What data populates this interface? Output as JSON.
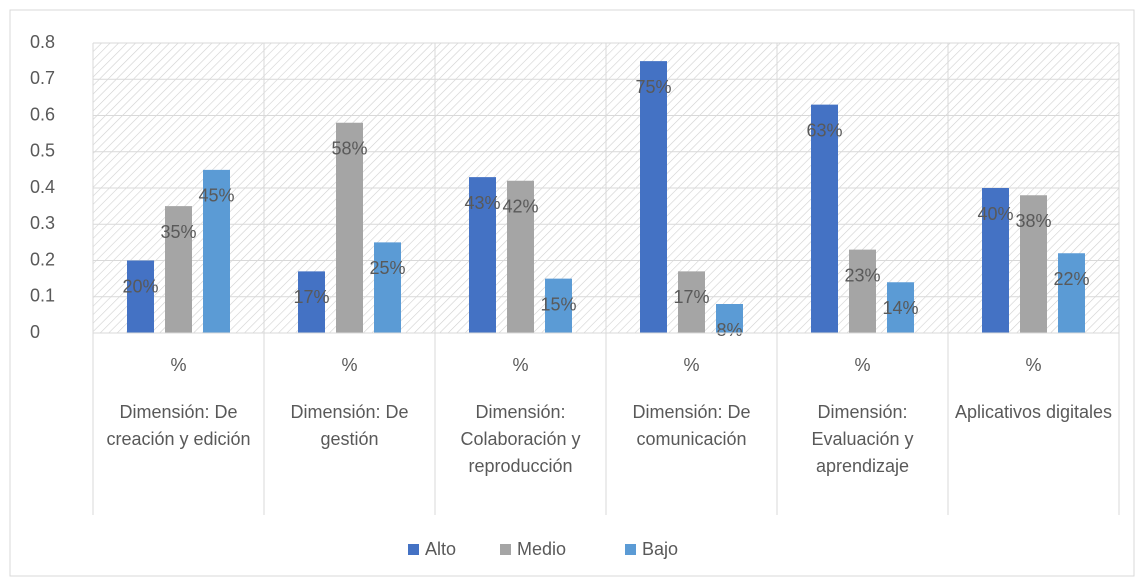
{
  "chart_data": {
    "type": "bar",
    "categories": [
      "Dimensión: De creación y edición",
      "Dimensión: De gestión",
      "Dimensión: Colaboración y reproducción",
      "Dimensión: De comunicación",
      "Dimensión: Evaluación y aprendizaje",
      "Aplicativos digitales"
    ],
    "category_sublabels": [
      "%",
      "%",
      "%",
      "%",
      "%",
      "%"
    ],
    "series": [
      {
        "name": "Alto",
        "color": "#4472c4",
        "values": [
          0.2,
          0.17,
          0.43,
          0.75,
          0.63,
          0.4
        ],
        "value_labels": [
          "20%",
          "17%",
          "43%",
          "75%",
          "63%",
          "40%"
        ]
      },
      {
        "name": "Medio",
        "color": "#a5a5a5",
        "values": [
          0.35,
          0.58,
          0.42,
          0.17,
          0.23,
          0.38
        ],
        "value_labels": [
          "35%",
          "58%",
          "42%",
          "17%",
          "23%",
          "38%"
        ]
      },
      {
        "name": "Bajo",
        "color": "#5b9bd5",
        "values": [
          0.45,
          0.25,
          0.15,
          0.08,
          0.14,
          0.22
        ],
        "value_labels": [
          "45%",
          "25%",
          "15%",
          "8%",
          "14%",
          "22%"
        ]
      }
    ],
    "ylim": [
      0,
      0.8
    ],
    "yticks": [
      0,
      0.1,
      0.2,
      0.3,
      0.4,
      0.5,
      0.6,
      0.7,
      0.8
    ],
    "grid": true,
    "legend": "bottom"
  }
}
